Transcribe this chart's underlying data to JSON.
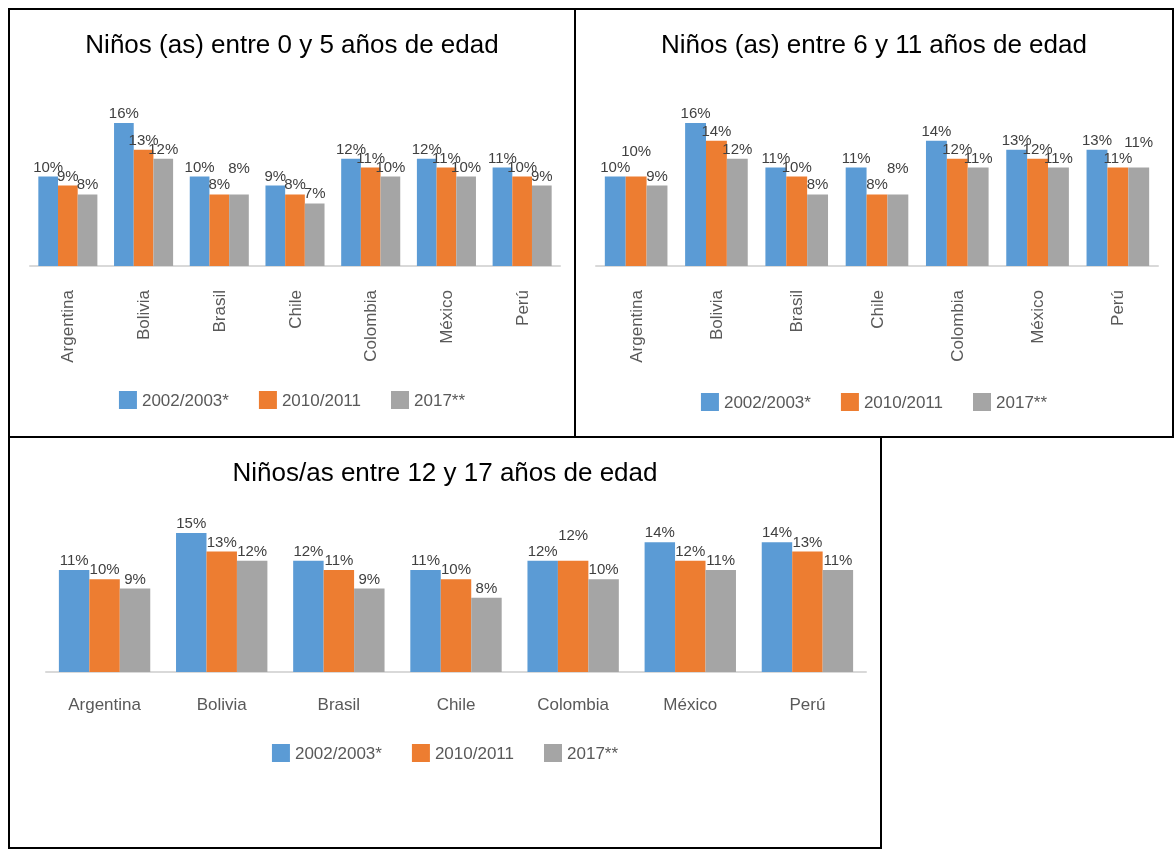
{
  "chart_data": [
    {
      "type": "bar",
      "title": "Niños (as) entre 0 y 5 años de edad",
      "categories": [
        "Argentina",
        "Bolivia",
        "Brasil",
        "Chile",
        "Colombia",
        "México",
        "Perú"
      ],
      "series": [
        {
          "name": "2002/2003*",
          "color": "#5b9bd5",
          "values": [
            10,
            16,
            10,
            9,
            12,
            12,
            11
          ],
          "value_labels": [
            "10%",
            "16%",
            "10%",
            "9%",
            "12%",
            "12%",
            "11%"
          ]
        },
        {
          "name": "2010/2011",
          "color": "#ed7d31",
          "values": [
            9,
            13,
            8,
            8,
            11,
            11,
            10
          ],
          "value_labels": [
            "9%",
            "13%",
            "8%",
            "8%",
            "11%",
            "11%",
            "10%"
          ]
        },
        {
          "name": "2017**",
          "color": "#a5a5a5",
          "values": [
            8,
            12,
            8,
            7,
            10,
            10,
            9
          ],
          "value_labels": [
            "8%",
            "12%",
            "8%",
            "7%",
            "10%",
            "10%",
            "9%"
          ]
        }
      ],
      "legend": "bottom",
      "grid": false,
      "tick_labels": "x"
    },
    {
      "type": "bar",
      "title": "Niños (as) entre 6 y 11 años de edad",
      "categories": [
        "Argentina",
        "Bolivia",
        "Brasil",
        "Chile",
        "Colombia",
        "México",
        "Perú"
      ],
      "series": [
        {
          "name": "2002/2003*",
          "color": "#5b9bd5",
          "values": [
            10,
            16,
            11,
            11,
            14,
            13,
            13
          ],
          "value_labels": [
            "10%",
            "16%",
            "11%",
            "11%",
            "14%",
            "13%",
            "13%"
          ]
        },
        {
          "name": "2010/2011",
          "color": "#ed7d31",
          "values": [
            10,
            14,
            10,
            8,
            12,
            12,
            11
          ],
          "value_labels": [
            "10%",
            "14%",
            "10%",
            "8%",
            "12%",
            "12%",
            "11%"
          ]
        },
        {
          "name": "2017**",
          "color": "#a5a5a5",
          "values": [
            9,
            12,
            8,
            8,
            11,
            11,
            11
          ],
          "value_labels": [
            "9%",
            "12%",
            "8%",
            "8%",
            "11%",
            "11%",
            "11%"
          ]
        }
      ],
      "legend": "bottom",
      "grid": false,
      "tick_labels": "x"
    },
    {
      "type": "bar",
      "title": "Niños/as entre 12 y 17 años de edad",
      "categories": [
        "Argentina",
        "Bolivia",
        "Brasil",
        "Chile",
        "Colombia",
        "México",
        "Perú"
      ],
      "series": [
        {
          "name": "2002/2003*",
          "color": "#5b9bd5",
          "values": [
            11,
            15,
            12,
            11,
            12,
            14,
            14
          ],
          "value_labels": [
            "11%",
            "15%",
            "12%",
            "11%",
            "12%",
            "14%",
            "14%"
          ]
        },
        {
          "name": "2010/2011",
          "color": "#ed7d31",
          "values": [
            10,
            13,
            11,
            10,
            12,
            12,
            13
          ],
          "value_labels": [
            "10%",
            "13%",
            "11%",
            "10%",
            "12%",
            "12%",
            "13%"
          ]
        },
        {
          "name": "2017**",
          "color": "#a5a5a5",
          "values": [
            9,
            12,
            9,
            8,
            10,
            11,
            11
          ],
          "value_labels": [
            "9%",
            "12%",
            "9%",
            "8%",
            "10%",
            "11%",
            "11%"
          ]
        }
      ],
      "legend": "bottom",
      "grid": false,
      "tick_labels": "x"
    }
  ]
}
